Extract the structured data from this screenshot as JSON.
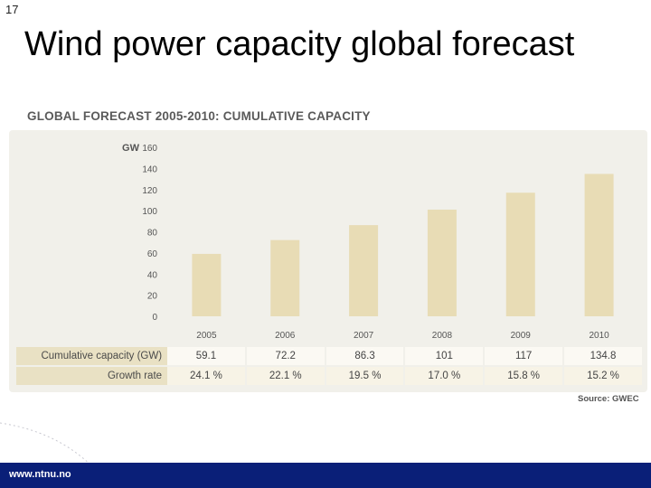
{
  "slide": {
    "number": "17",
    "title": "Wind power capacity global forecast",
    "footer_url": "www.ntnu.no"
  },
  "chart_data": {
    "type": "bar",
    "title": "GLOBAL FORECAST 2005-2010: CUMULATIVE CAPACITY",
    "ylabel": "GW",
    "categories": [
      "2005",
      "2006",
      "2007",
      "2008",
      "2009",
      "2010"
    ],
    "values": [
      59.1,
      72.2,
      86.3,
      101,
      117,
      134.8
    ],
    "ylim": [
      0,
      160
    ],
    "yticks": [
      "0",
      "20",
      "40",
      "60",
      "80",
      "100",
      "120",
      "140",
      "160"
    ],
    "bar_color": "#e8dcb5",
    "grid": false,
    "table": {
      "rows": [
        {
          "label": "Cumulative capacity (GW)",
          "cells": [
            "59.1",
            "72.2",
            "86.3",
            "101",
            "117",
            "134.8"
          ]
        },
        {
          "label": "Growth rate",
          "cells": [
            "24.1 %",
            "22.1 %",
            "19.5 %",
            "17.0 %",
            "15.8 %",
            "15.2 %"
          ]
        }
      ]
    },
    "source": "Source: GWEC"
  }
}
